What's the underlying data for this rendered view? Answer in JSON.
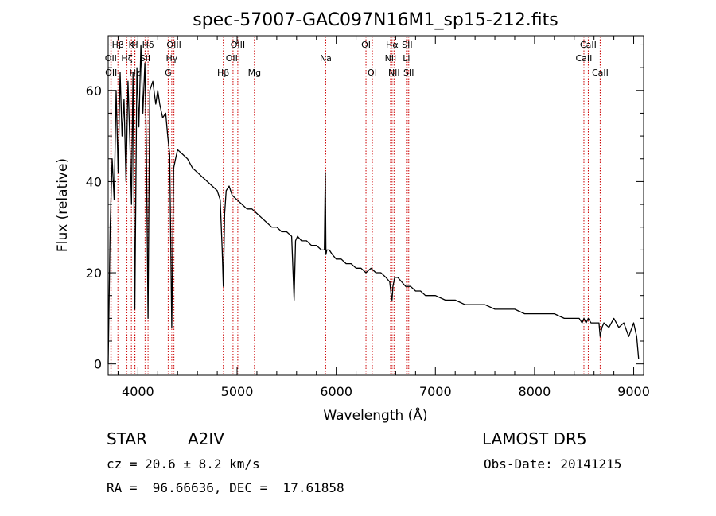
{
  "chart_data": {
    "type": "line",
    "title": "spec-57007-GAC097N16M1_sp15-212.fits",
    "xlabel": "Wavelength (Å)",
    "ylabel": "Flux (relative)",
    "xlim": [
      3700,
      9100
    ],
    "ylim": [
      -2.5,
      72
    ],
    "x_ticks": [
      4000,
      5000,
      6000,
      7000,
      8000,
      9000
    ],
    "y_ticks": [
      0,
      20,
      40,
      60
    ],
    "grid": false,
    "line_color": "#000000",
    "marker_color": "#cc0000",
    "lines": [
      {
        "label": "Hβ",
        "wavelength": 3798,
        "row": 0
      },
      {
        "label": "OII",
        "wavelength": 3727,
        "row": 1
      },
      {
        "label": "Hζ",
        "wavelength": 3889,
        "row": 1
      },
      {
        "label": "OII",
        "wavelength": 3730,
        "row": 2
      },
      {
        "label": "K",
        "wavelength": 3934,
        "row": 0
      },
      {
        "label": "H",
        "wavelength": 3969,
        "row": 0
      },
      {
        "label": "Hε",
        "wavelength": 3970,
        "row": 2
      },
      {
        "label": "SII",
        "wavelength": 4072,
        "row": 1
      },
      {
        "label": "Hδ",
        "wavelength": 4102,
        "row": 0
      },
      {
        "label": "Hγ",
        "wavelength": 4341,
        "row": 1
      },
      {
        "label": "G",
        "wavelength": 4305,
        "row": 2
      },
      {
        "label": "OIII",
        "wavelength": 4363,
        "row": 0
      },
      {
        "label": "Hβ",
        "wavelength": 4861,
        "row": 2
      },
      {
        "label": "OIII",
        "wavelength": 4959,
        "row": 1
      },
      {
        "label": "OIII",
        "wavelength": 5007,
        "row": 0
      },
      {
        "label": "Mg",
        "wavelength": 5175,
        "row": 2
      },
      {
        "label": "Na",
        "wavelength": 5894,
        "row": 1
      },
      {
        "label": "OI",
        "wavelength": 6300,
        "row": 0
      },
      {
        "label": "OI",
        "wavelength": 6364,
        "row": 2
      },
      {
        "label": "Hα",
        "wavelength": 6563,
        "row": 0
      },
      {
        "label": "NII",
        "wavelength": 6548,
        "row": 1
      },
      {
        "label": "NII",
        "wavelength": 6583,
        "row": 2
      },
      {
        "label": "SII",
        "wavelength": 6716,
        "row": 0
      },
      {
        "label": "Li",
        "wavelength": 6708,
        "row": 1
      },
      {
        "label": "SII",
        "wavelength": 6731,
        "row": 2
      },
      {
        "label": "CaII",
        "wavelength": 8542,
        "row": 0
      },
      {
        "label": "CaII",
        "wavelength": 8498,
        "row": 1
      },
      {
        "label": "CaII",
        "wavelength": 8662,
        "row": 2
      }
    ],
    "series": [
      {
        "x": [
          3700,
          3720,
          3740,
          3760,
          3780,
          3800,
          3820,
          3840,
          3860,
          3880,
          3900,
          3920,
          3935,
          3950,
          3969,
          3990,
          4010,
          4030,
          4050,
          4070,
          4085,
          4102,
          4120,
          4150,
          4180,
          4200,
          4220,
          4250,
          4280,
          4300,
          4320,
          4341,
          4360,
          4380,
          4400,
          4450,
          4500,
          4550,
          4600,
          4650,
          4700,
          4750,
          4800,
          4830,
          4850,
          4861,
          4875,
          4890,
          4920,
          4950,
          5000,
          5050,
          5100,
          5150,
          5200,
          5250,
          5300,
          5350,
          5400,
          5450,
          5500,
          5550,
          5575,
          5590,
          5610,
          5650,
          5700,
          5750,
          5800,
          5850,
          5880,
          5890,
          5896,
          5905,
          5930,
          5960,
          6000,
          6050,
          6100,
          6150,
          6200,
          6250,
          6300,
          6350,
          6400,
          6450,
          6500,
          6540,
          6555,
          6563,
          6572,
          6590,
          6620,
          6660,
          6700,
          6750,
          6800,
          6850,
          6900,
          7000,
          7100,
          7200,
          7300,
          7400,
          7500,
          7600,
          7700,
          7800,
          7900,
          8000,
          8100,
          8200,
          8300,
          8400,
          8450,
          8480,
          8498,
          8520,
          8542,
          8570,
          8600,
          8650,
          8662,
          8680,
          8700,
          8750,
          8800,
          8850,
          8900,
          8950,
          9000,
          9030,
          9050
        ],
        "y": [
          0,
          30,
          45,
          36,
          60,
          42,
          64,
          50,
          58,
          40,
          62,
          48,
          35,
          64,
          12,
          65,
          52,
          70,
          55,
          66,
          48,
          10,
          60,
          62,
          57,
          60,
          57,
          54,
          55,
          50,
          46,
          8,
          43,
          45,
          47,
          46,
          45,
          43,
          42,
          41,
          40,
          39,
          38,
          36,
          25,
          17,
          33,
          38,
          39,
          37,
          36,
          35,
          34,
          34,
          33,
          32,
          31,
          30,
          30,
          29,
          29,
          28,
          14,
          27,
          28,
          27,
          27,
          26,
          26,
          25,
          25,
          42,
          24,
          25,
          25,
          24,
          23,
          23,
          22,
          22,
          21,
          21,
          20,
          21,
          20,
          20,
          19,
          18,
          15,
          14,
          17,
          19,
          19,
          18,
          17,
          17,
          16,
          16,
          15,
          15,
          14,
          14,
          13,
          13,
          13,
          12,
          12,
          12,
          11,
          11,
          11,
          11,
          10,
          10,
          10,
          9,
          10,
          9,
          10,
          9,
          9,
          9,
          6,
          8,
          9,
          8,
          10,
          8,
          9,
          6,
          9,
          6,
          1
        ]
      }
    ]
  },
  "info": {
    "object_class": "STAR",
    "subclass": "A2IV",
    "survey": "LAMOST DR5",
    "redshift": "cz = 20.6 ± 8.2 km/s",
    "obs_date": "Obs-Date: 20141215",
    "coordinates": "RA =  96.66636, DEC =  17.61858"
  }
}
